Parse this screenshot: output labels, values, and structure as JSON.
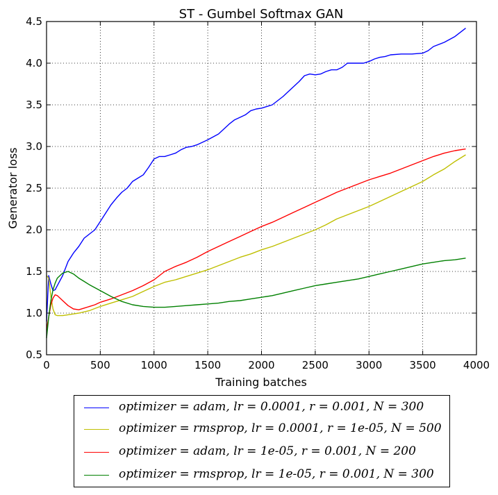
{
  "chart_data": {
    "type": "line",
    "title": "ST - Gumbel Softmax GAN",
    "xlabel": "Training batches",
    "ylabel": "Generator loss",
    "xlim": [
      0,
      4000
    ],
    "ylim": [
      0.5,
      4.5
    ],
    "xticks": [
      "0",
      "500",
      "1000",
      "1500",
      "2000",
      "2500",
      "3000",
      "3500",
      "4000"
    ],
    "yticks": [
      "0.5",
      "1.0",
      "1.5",
      "2.0",
      "2.5",
      "3.0",
      "3.5",
      "4.0",
      "4.5"
    ],
    "grid": true,
    "legend_position": "below",
    "series": [
      {
        "name": "optimizer = adam, lr = 0.0001, r = 0.001, N = 300",
        "color": "#0000ff",
        "x": [
          0,
          20,
          40,
          60,
          80,
          100,
          150,
          200,
          250,
          300,
          350,
          400,
          450,
          500,
          550,
          600,
          650,
          700,
          750,
          800,
          850,
          900,
          950,
          1000,
          1050,
          1100,
          1150,
          1200,
          1250,
          1300,
          1350,
          1400,
          1450,
          1500,
          1600,
          1700,
          1750,
          1800,
          1850,
          1900,
          1950,
          2000,
          2050,
          2100,
          2200,
          2300,
          2350,
          2400,
          2450,
          2500,
          2550,
          2600,
          2650,
          2700,
          2750,
          2800,
          2850,
          2900,
          2950,
          3000,
          3050,
          3100,
          3150,
          3200,
          3300,
          3400,
          3500,
          3550,
          3600,
          3700,
          3800,
          3900
        ],
        "y": [
          0.9,
          1.45,
          1.35,
          1.27,
          1.28,
          1.33,
          1.45,
          1.62,
          1.72,
          1.8,
          1.9,
          1.95,
          2.0,
          2.1,
          2.2,
          2.3,
          2.38,
          2.45,
          2.5,
          2.58,
          2.62,
          2.66,
          2.75,
          2.85,
          2.88,
          2.88,
          2.9,
          2.92,
          2.96,
          2.99,
          3.0,
          3.02,
          3.05,
          3.08,
          3.15,
          3.27,
          3.32,
          3.35,
          3.38,
          3.43,
          3.45,
          3.46,
          3.48,
          3.5,
          3.6,
          3.72,
          3.78,
          3.85,
          3.87,
          3.86,
          3.87,
          3.9,
          3.92,
          3.92,
          3.95,
          4.0,
          4.0,
          4.0,
          4.0,
          4.02,
          4.05,
          4.07,
          4.08,
          4.1,
          4.11,
          4.11,
          4.12,
          4.15,
          4.2,
          4.25,
          4.32,
          4.42
        ]
      },
      {
        "name": "optimizer = rmsprop, lr = 0.0001, r = 1e-05, N = 500",
        "color": "#bfbf00",
        "x": [
          0,
          20,
          40,
          60,
          80,
          100,
          150,
          200,
          250,
          300,
          400,
          500,
          600,
          700,
          800,
          900,
          1000,
          1100,
          1200,
          1300,
          1400,
          1500,
          1600,
          1700,
          1800,
          1900,
          2000,
          2100,
          2200,
          2300,
          2400,
          2500,
          2600,
          2700,
          2800,
          2900,
          3000,
          3100,
          3200,
          3300,
          3400,
          3500,
          3600,
          3700,
          3800,
          3900
        ],
        "y": [
          1.45,
          1.42,
          1.2,
          1.05,
          0.98,
          0.97,
          0.97,
          0.98,
          0.99,
          1.0,
          1.03,
          1.08,
          1.12,
          1.16,
          1.2,
          1.26,
          1.32,
          1.37,
          1.4,
          1.44,
          1.48,
          1.52,
          1.57,
          1.62,
          1.67,
          1.71,
          1.76,
          1.8,
          1.85,
          1.9,
          1.95,
          2.0,
          2.06,
          2.13,
          2.18,
          2.23,
          2.28,
          2.34,
          2.4,
          2.46,
          2.52,
          2.58,
          2.66,
          2.73,
          2.82,
          2.9
        ]
      },
      {
        "name": "optimizer = adam, lr = 1e-05, r = 0.001, N = 200",
        "color": "#ff0000",
        "x": [
          0,
          20,
          40,
          60,
          80,
          100,
          150,
          200,
          250,
          300,
          350,
          400,
          450,
          500,
          600,
          700,
          800,
          900,
          1000,
          1100,
          1200,
          1300,
          1400,
          1500,
          1600,
          1700,
          1800,
          1900,
          2000,
          2100,
          2200,
          2300,
          2400,
          2500,
          2600,
          2700,
          2800,
          2900,
          3000,
          3100,
          3200,
          3300,
          3400,
          3500,
          3600,
          3700,
          3800,
          3900
        ],
        "y": [
          0.8,
          0.95,
          1.1,
          1.18,
          1.22,
          1.21,
          1.15,
          1.09,
          1.05,
          1.04,
          1.06,
          1.08,
          1.1,
          1.13,
          1.17,
          1.22,
          1.27,
          1.33,
          1.4,
          1.5,
          1.56,
          1.61,
          1.67,
          1.74,
          1.8,
          1.86,
          1.92,
          1.98,
          2.04,
          2.09,
          2.15,
          2.21,
          2.27,
          2.33,
          2.39,
          2.45,
          2.5,
          2.55,
          2.6,
          2.64,
          2.68,
          2.73,
          2.78,
          2.83,
          2.88,
          2.92,
          2.95,
          2.97
        ]
      },
      {
        "name": "optimizer = rmsprop, lr = 1e-05, r = 0.001, N = 300",
        "color": "#008000",
        "x": [
          0,
          20,
          40,
          60,
          80,
          100,
          150,
          200,
          250,
          300,
          350,
          400,
          500,
          600,
          700,
          800,
          900,
          1000,
          1100,
          1200,
          1300,
          1400,
          1500,
          1600,
          1700,
          1800,
          1900,
          2000,
          2100,
          2200,
          2300,
          2400,
          2500,
          2600,
          2700,
          2800,
          2900,
          3000,
          3100,
          3200,
          3300,
          3400,
          3500,
          3600,
          3700,
          3800,
          3900
        ],
        "y": [
          0.7,
          0.95,
          1.15,
          1.28,
          1.36,
          1.42,
          1.48,
          1.5,
          1.47,
          1.42,
          1.38,
          1.34,
          1.27,
          1.2,
          1.14,
          1.1,
          1.08,
          1.07,
          1.07,
          1.08,
          1.09,
          1.1,
          1.11,
          1.12,
          1.14,
          1.15,
          1.17,
          1.19,
          1.21,
          1.24,
          1.27,
          1.3,
          1.33,
          1.35,
          1.37,
          1.39,
          1.41,
          1.44,
          1.47,
          1.5,
          1.53,
          1.56,
          1.59,
          1.61,
          1.63,
          1.64,
          1.66
        ]
      }
    ]
  },
  "legend": {
    "items": [
      {
        "label": "optimizer = adam, lr = 0.0001, r = 0.001, N = 300",
        "color": "#0000ff"
      },
      {
        "label": "optimizer = rmsprop, lr = 0.0001, r = 1e-05, N = 500",
        "color": "#bfbf00"
      },
      {
        "label": "optimizer = adam, lr = 1e-05, r = 0.001, N = 200",
        "color": "#ff0000"
      },
      {
        "label": "optimizer = rmsprop, lr = 1e-05, r = 0.001, N = 300",
        "color": "#008000"
      }
    ]
  }
}
